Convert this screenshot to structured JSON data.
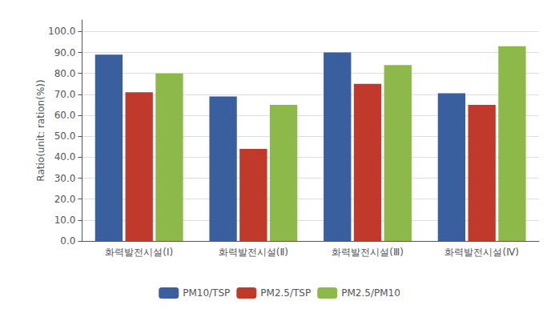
{
  "chart_data": {
    "type": "bar",
    "categories": [
      "화력발전시설(I)",
      "화력발전시설(Ⅱ)",
      "화력발전시설(Ⅲ)",
      "화력발전시설(Ⅳ)"
    ],
    "series": [
      {
        "name": "PM10/TSP",
        "color": "#3a5f9f",
        "values": [
          89.0,
          69.0,
          90.0,
          70.5
        ]
      },
      {
        "name": "PM2.5/TSP",
        "color": "#c0392b",
        "values": [
          71.0,
          44.0,
          75.0,
          65.0
        ]
      },
      {
        "name": "PM2.5/PM10",
        "color": "#8db84a",
        "values": [
          80.0,
          65.0,
          84.0,
          93.0
        ]
      }
    ],
    "ylabel": "Ratio(unit: ration(%))",
    "ylim": [
      0,
      105.5
    ],
    "yticks": [
      {
        "value": 0,
        "label": "0.0"
      },
      {
        "value": 10,
        "label": "10.0"
      },
      {
        "value": 20,
        "label": "20.0"
      },
      {
        "value": 30,
        "label": "30.0"
      },
      {
        "value": 40,
        "label": "40.0"
      },
      {
        "value": 50,
        "label": "50.0"
      },
      {
        "value": 60,
        "label": "60.0"
      },
      {
        "value": 70,
        "label": "70.0"
      },
      {
        "value": 80,
        "label": "80.0"
      },
      {
        "value": 90,
        "label": "90.0"
      },
      {
        "value": 100,
        "label": "100.0"
      }
    ],
    "grid": true,
    "legend": "bottom"
  }
}
